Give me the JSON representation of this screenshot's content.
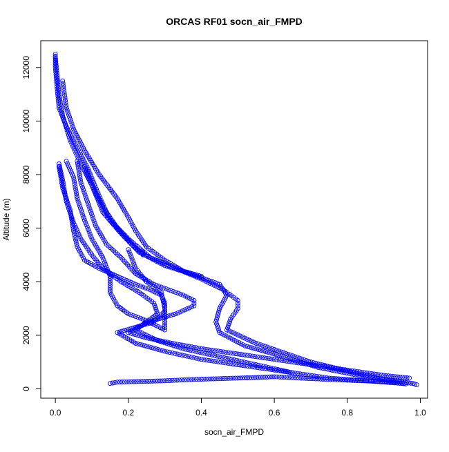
{
  "chart_data": {
    "type": "scatter",
    "title": "ORCAS RF01 socn_air_FMPD",
    "xlabel": "socn_air_FMPD",
    "ylabel": "Altitude (m)",
    "xlim": [
      -0.04,
      1.02
    ],
    "ylim": [
      -350,
      13000
    ],
    "x_ticks": [
      0.0,
      0.2,
      0.4,
      0.6,
      0.8,
      1.0
    ],
    "x_tick_labels": [
      "0.0",
      "0.2",
      "0.4",
      "0.6",
      "0.8",
      "1.0"
    ],
    "y_ticks": [
      0,
      2000,
      4000,
      6000,
      8000,
      10000,
      12000
    ],
    "y_tick_labels": [
      "0",
      "2000",
      "4000",
      "6000",
      "8000",
      "10000",
      "12000"
    ],
    "grid": false,
    "legend": "none",
    "marker": "open-circle",
    "color": "#0000ff",
    "profiles": [
      [
        [
          0.0,
          12500
        ],
        [
          0.0,
          12000
        ],
        [
          0.005,
          11200
        ],
        [
          0.01,
          10500
        ],
        [
          0.03,
          9800
        ],
        [
          0.06,
          9000
        ],
        [
          0.09,
          8200
        ],
        [
          0.12,
          7200
        ],
        [
          0.15,
          6300
        ],
        [
          0.2,
          5600
        ],
        [
          0.26,
          4900
        ],
        [
          0.33,
          4500
        ],
        [
          0.4,
          4100
        ],
        [
          0.46,
          3700
        ],
        [
          0.5,
          3300
        ],
        [
          0.5,
          3000
        ],
        [
          0.48,
          2600
        ],
        [
          0.47,
          2200
        ],
        [
          0.55,
          1700
        ],
        [
          0.7,
          1000
        ],
        [
          0.82,
          600
        ],
        [
          0.9,
          350
        ],
        [
          0.95,
          250
        ],
        [
          0.98,
          200
        ],
        [
          0.99,
          150
        ]
      ],
      [
        [
          0.0,
          12400
        ],
        [
          0.01,
          11000
        ],
        [
          0.02,
          10200
        ],
        [
          0.04,
          9300
        ],
        [
          0.07,
          8400
        ],
        [
          0.1,
          7600
        ],
        [
          0.13,
          6600
        ],
        [
          0.18,
          5800
        ],
        [
          0.23,
          5100
        ],
        [
          0.3,
          4600
        ],
        [
          0.37,
          4300
        ],
        [
          0.45,
          3900
        ],
        [
          0.47,
          3500
        ],
        [
          0.45,
          3000
        ],
        [
          0.44,
          2500
        ],
        [
          0.45,
          2100
        ],
        [
          0.52,
          1600
        ],
        [
          0.6,
          1300
        ],
        [
          0.72,
          800
        ],
        [
          0.85,
          450
        ],
        [
          0.95,
          250
        ]
      ],
      [
        [
          0.01,
          8400
        ],
        [
          0.02,
          7800
        ],
        [
          0.03,
          7000
        ],
        [
          0.05,
          6200
        ],
        [
          0.07,
          5600
        ],
        [
          0.1,
          5000
        ],
        [
          0.13,
          4500
        ],
        [
          0.18,
          4000
        ],
        [
          0.23,
          3600
        ],
        [
          0.27,
          3200
        ],
        [
          0.28,
          2800
        ],
        [
          0.25,
          2500
        ],
        [
          0.22,
          2200
        ],
        [
          0.28,
          1800
        ],
        [
          0.35,
          1500
        ],
        [
          0.45,
          1200
        ],
        [
          0.55,
          900
        ],
        [
          0.65,
          600
        ],
        [
          0.75,
          400
        ],
        [
          0.85,
          300
        ],
        [
          0.95,
          200
        ]
      ],
      [
        [
          0.03,
          8500
        ],
        [
          0.05,
          7900
        ],
        [
          0.06,
          7100
        ],
        [
          0.08,
          6300
        ],
        [
          0.1,
          5600
        ],
        [
          0.13,
          4900
        ],
        [
          0.15,
          4200
        ],
        [
          0.15,
          3600
        ],
        [
          0.17,
          3100
        ],
        [
          0.2,
          2800
        ],
        [
          0.24,
          2600
        ],
        [
          0.27,
          2400
        ],
        [
          0.3,
          2200
        ],
        [
          0.3,
          3000
        ],
        [
          0.29,
          3600
        ],
        [
          0.25,
          4000
        ],
        [
          0.22,
          4500
        ],
        [
          0.2,
          5200
        ]
      ],
      [
        [
          0.06,
          8500
        ],
        [
          0.07,
          7700
        ],
        [
          0.09,
          6900
        ],
        [
          0.11,
          6100
        ],
        [
          0.14,
          5400
        ],
        [
          0.18,
          4900
        ],
        [
          0.22,
          4300
        ],
        [
          0.27,
          3900
        ],
        [
          0.31,
          3700
        ],
        [
          0.35,
          3500
        ],
        [
          0.38,
          3300
        ],
        [
          0.38,
          3100
        ],
        [
          0.33,
          2800
        ],
        [
          0.28,
          2600
        ],
        [
          0.24,
          2400
        ],
        [
          0.2,
          2100
        ],
        [
          0.25,
          1900
        ],
        [
          0.32,
          1700
        ],
        [
          0.4,
          1500
        ],
        [
          0.5,
          1300
        ],
        [
          0.6,
          1100
        ],
        [
          0.7,
          900
        ],
        [
          0.8,
          700
        ],
        [
          0.9,
          500
        ],
        [
          0.97,
          400
        ]
      ],
      [
        [
          0.01,
          8300
        ],
        [
          0.02,
          7500
        ],
        [
          0.04,
          6700
        ],
        [
          0.05,
          5900
        ],
        [
          0.06,
          5300
        ],
        [
          0.08,
          4800
        ],
        [
          0.12,
          4500
        ],
        [
          0.17,
          4200
        ],
        [
          0.22,
          3900
        ],
        [
          0.26,
          3700
        ],
        [
          0.29,
          3500
        ],
        [
          0.3,
          3200
        ],
        [
          0.3,
          2900
        ],
        [
          0.27,
          2500
        ],
        [
          0.22,
          2300
        ],
        [
          0.17,
          2100
        ],
        [
          0.22,
          1700
        ],
        [
          0.3,
          1400
        ],
        [
          0.4,
          1100
        ],
        [
          0.5,
          900
        ],
        [
          0.6,
          700
        ],
        [
          0.65,
          600
        ]
      ],
      [
        [
          0.08,
          8300
        ],
        [
          0.1,
          7600
        ],
        [
          0.13,
          6800
        ],
        [
          0.17,
          6000
        ],
        [
          0.21,
          5400
        ],
        [
          0.24,
          5000
        ],
        [
          0.24,
          5100
        ],
        [
          0.24,
          5050
        ]
      ],
      [
        [
          0.15,
          200
        ],
        [
          0.17,
          250
        ],
        [
          0.3,
          300
        ],
        [
          0.38,
          350
        ],
        [
          0.5,
          400
        ],
        [
          0.55,
          420
        ],
        [
          0.6,
          450
        ],
        [
          0.7,
          380
        ],
        [
          0.8,
          320
        ],
        [
          0.9,
          270
        ],
        [
          0.95,
          200
        ],
        [
          0.96,
          180
        ]
      ],
      [
        [
          0.02,
          11500
        ],
        [
          0.03,
          10500
        ],
        [
          0.05,
          9700
        ],
        [
          0.08,
          8900
        ],
        [
          0.12,
          8000
        ],
        [
          0.17,
          7100
        ],
        [
          0.2,
          6400
        ],
        [
          0.22,
          5900
        ],
        [
          0.25,
          5300
        ],
        [
          0.3,
          4800
        ],
        [
          0.35,
          4400
        ],
        [
          0.4,
          4200
        ]
      ]
    ]
  }
}
